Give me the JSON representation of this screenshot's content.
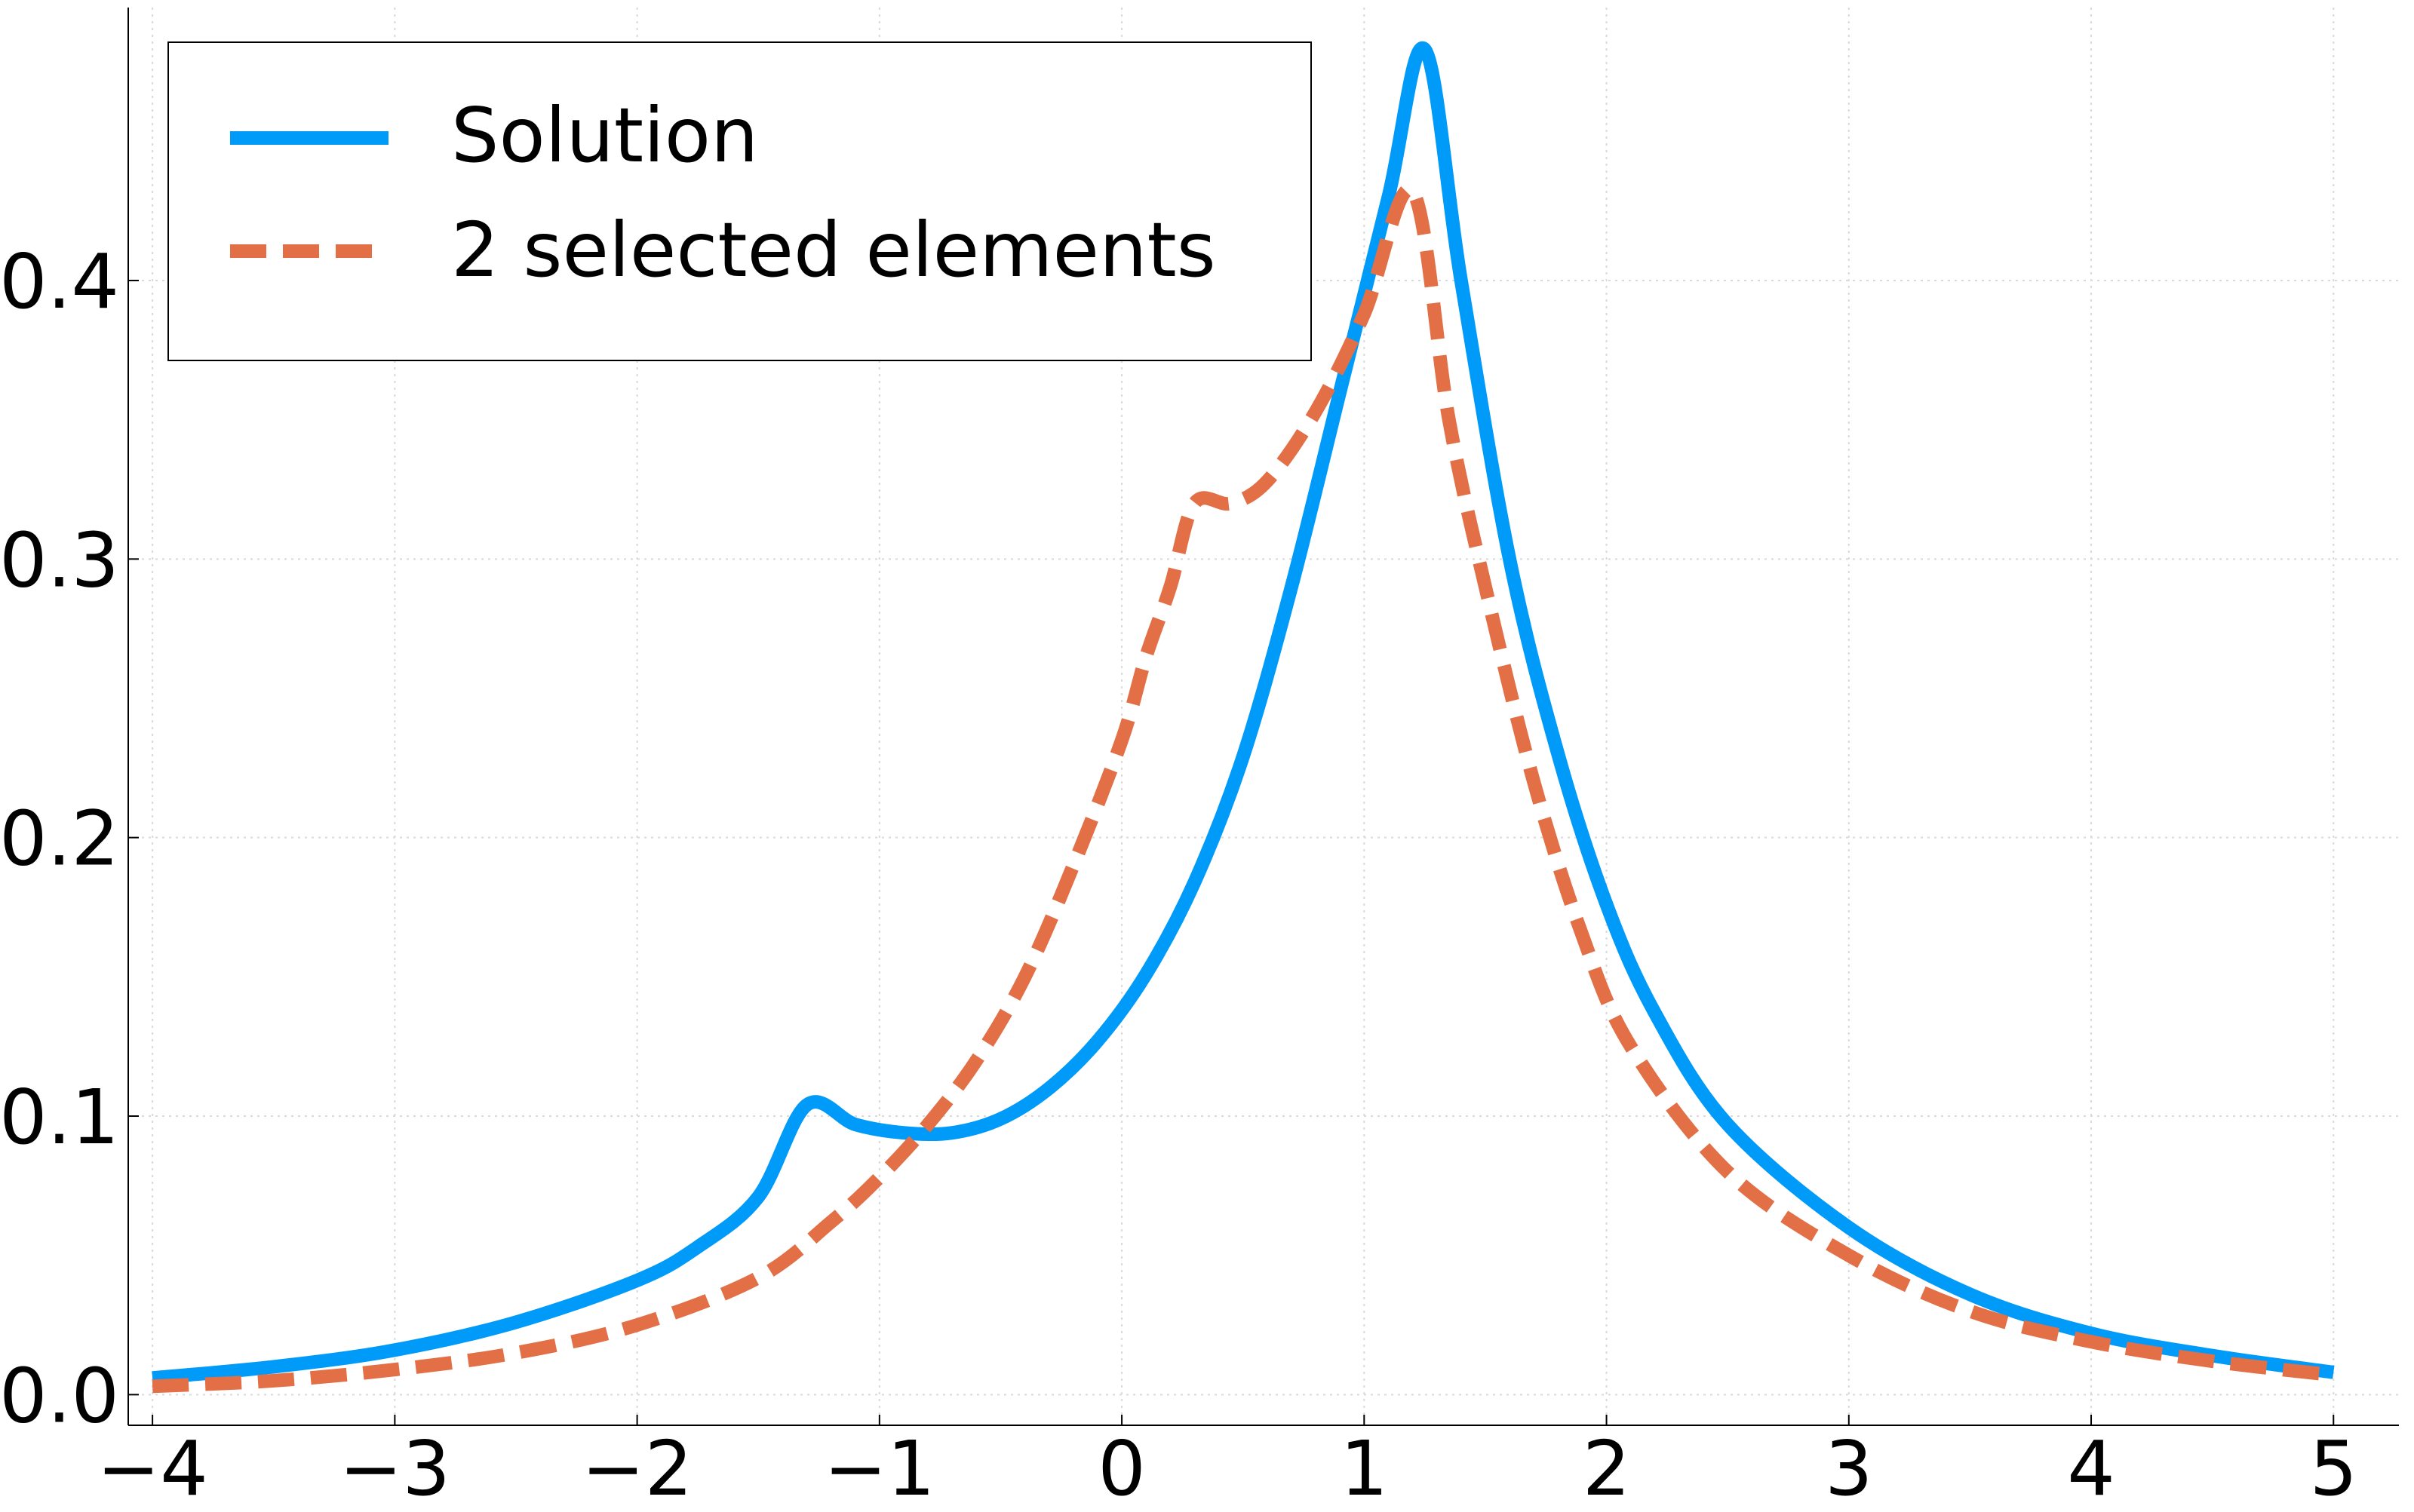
{
  "chart_data": {
    "type": "line",
    "title": "",
    "xlabel": "",
    "ylabel": "",
    "xlim": [
      -4.1,
      5.27
    ],
    "ylim": [
      -0.011,
      0.498
    ],
    "x_ticks": [
      -4,
      -3,
      -2,
      -1,
      0,
      1,
      2,
      3,
      4,
      5
    ],
    "x_tick_labels": [
      "−4",
      "−3",
      "−2",
      "−1",
      "0",
      "1",
      "2",
      "3",
      "4",
      "5"
    ],
    "y_ticks": [
      0.0,
      0.1,
      0.2,
      0.3,
      0.4
    ],
    "y_tick_labels": [
      "0.0",
      "0.1",
      "0.2",
      "0.3",
      "0.4"
    ],
    "grid": true,
    "legend_position": "top-left",
    "series": [
      {
        "name": "Solution",
        "color": "#009af9",
        "style": "solid",
        "points": [
          [
            -4.0,
            0.006
          ],
          [
            -3.5,
            0.01
          ],
          [
            -3.0,
            0.016
          ],
          [
            -2.5,
            0.026
          ],
          [
            -2.0,
            0.041
          ],
          [
            -1.75,
            0.053
          ],
          [
            -1.5,
            0.071
          ],
          [
            -1.3,
            0.104
          ],
          [
            -1.1,
            0.097
          ],
          [
            -0.9,
            0.094
          ],
          [
            -0.7,
            0.094
          ],
          [
            -0.5,
            0.099
          ],
          [
            -0.3,
            0.11
          ],
          [
            -0.1,
            0.127
          ],
          [
            0.1,
            0.151
          ],
          [
            0.3,
            0.184
          ],
          [
            0.5,
            0.229
          ],
          [
            0.7,
            0.29
          ],
          [
            0.9,
            0.36
          ],
          [
            1.1,
            0.43
          ],
          [
            1.25,
            0.483
          ],
          [
            1.4,
            0.4
          ],
          [
            1.6,
            0.3
          ],
          [
            1.8,
            0.23
          ],
          [
            2.0,
            0.176
          ],
          [
            2.2,
            0.137
          ],
          [
            2.5,
            0.097
          ],
          [
            3.0,
            0.06
          ],
          [
            3.5,
            0.036
          ],
          [
            4.0,
            0.022
          ],
          [
            4.5,
            0.014
          ],
          [
            5.0,
            0.008
          ]
        ]
      },
      {
        "name": "2 selected elements",
        "color": "#e26f46",
        "style": "dashed",
        "points": [
          [
            -4.0,
            0.003
          ],
          [
            -3.5,
            0.005
          ],
          [
            -3.0,
            0.009
          ],
          [
            -2.5,
            0.015
          ],
          [
            -2.0,
            0.025
          ],
          [
            -1.5,
            0.042
          ],
          [
            -1.2,
            0.062
          ],
          [
            -1.0,
            0.078
          ],
          [
            -0.8,
            0.097
          ],
          [
            -0.6,
            0.12
          ],
          [
            -0.4,
            0.15
          ],
          [
            -0.2,
            0.19
          ],
          [
            0.0,
            0.235
          ],
          [
            0.1,
            0.265
          ],
          [
            0.2,
            0.29
          ],
          [
            0.3,
            0.32
          ],
          [
            0.45,
            0.32
          ],
          [
            0.6,
            0.328
          ],
          [
            0.8,
            0.353
          ],
          [
            1.0,
            0.388
          ],
          [
            1.2,
            0.432
          ],
          [
            1.35,
            0.35
          ],
          [
            1.5,
            0.29
          ],
          [
            1.7,
            0.22
          ],
          [
            1.9,
            0.165
          ],
          [
            2.1,
            0.125
          ],
          [
            2.5,
            0.08
          ],
          [
            3.0,
            0.05
          ],
          [
            3.5,
            0.03
          ],
          [
            4.0,
            0.019
          ],
          [
            4.5,
            0.012
          ],
          [
            5.0,
            0.007
          ]
        ]
      }
    ]
  }
}
